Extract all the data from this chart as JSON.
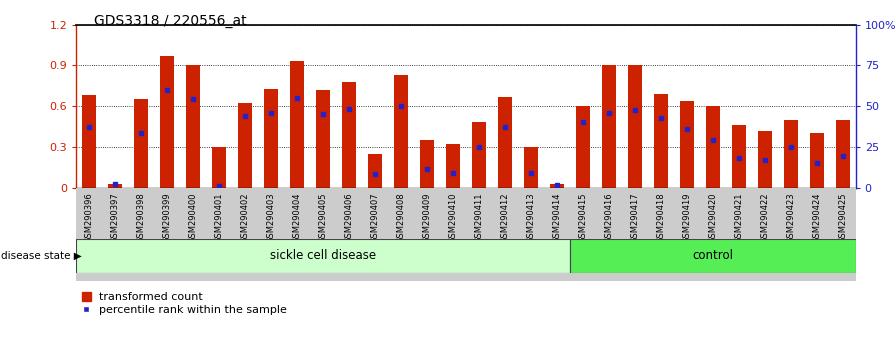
{
  "title": "GDS3318 / 220556_at",
  "samples": [
    "GSM290396",
    "GSM290397",
    "GSM290398",
    "GSM290399",
    "GSM290400",
    "GSM290401",
    "GSM290402",
    "GSM290403",
    "GSM290404",
    "GSM290405",
    "GSM290406",
    "GSM290407",
    "GSM290408",
    "GSM290409",
    "GSM290410",
    "GSM290411",
    "GSM290412",
    "GSM290413",
    "GSM290414",
    "GSM290415",
    "GSM290416",
    "GSM290417",
    "GSM290418",
    "GSM290419",
    "GSM290420",
    "GSM290421",
    "GSM290422",
    "GSM290423",
    "GSM290424",
    "GSM290425"
  ],
  "transformed_count": [
    0.68,
    0.03,
    0.65,
    0.97,
    0.9,
    0.3,
    0.62,
    0.73,
    0.93,
    0.72,
    0.78,
    0.25,
    0.83,
    0.35,
    0.32,
    0.48,
    0.67,
    0.3,
    0.03,
    0.6,
    0.9,
    0.9,
    0.69,
    0.64,
    0.6,
    0.46,
    0.42,
    0.5,
    0.4,
    0.5
  ],
  "percentile_rank": [
    0.45,
    0.03,
    0.4,
    0.72,
    0.65,
    0.01,
    0.53,
    0.55,
    0.66,
    0.54,
    0.58,
    0.1,
    0.6,
    0.14,
    0.11,
    0.3,
    0.45,
    0.11,
    0.02,
    0.48,
    0.55,
    0.57,
    0.51,
    0.43,
    0.35,
    0.22,
    0.2,
    0.3,
    0.18,
    0.23
  ],
  "sickle_count": 19,
  "control_count": 11,
  "bar_color": "#cc2200",
  "dot_color": "#2222cc",
  "sickle_bg": "#ccffcc",
  "control_bg": "#55ee55",
  "label_bg": "#cccccc",
  "ylim_left": [
    0,
    1.2
  ],
  "ylim_right": [
    0,
    100
  ],
  "yticks_left": [
    0,
    0.3,
    0.6,
    0.9,
    1.2
  ],
  "yticks_right": [
    0,
    25,
    50,
    75,
    100
  ],
  "ytick_labels_left": [
    "0",
    "0.3",
    "0.6",
    "0.9",
    "1.2"
  ],
  "ytick_labels_right": [
    "0",
    "25",
    "50",
    "75",
    "100%"
  ]
}
